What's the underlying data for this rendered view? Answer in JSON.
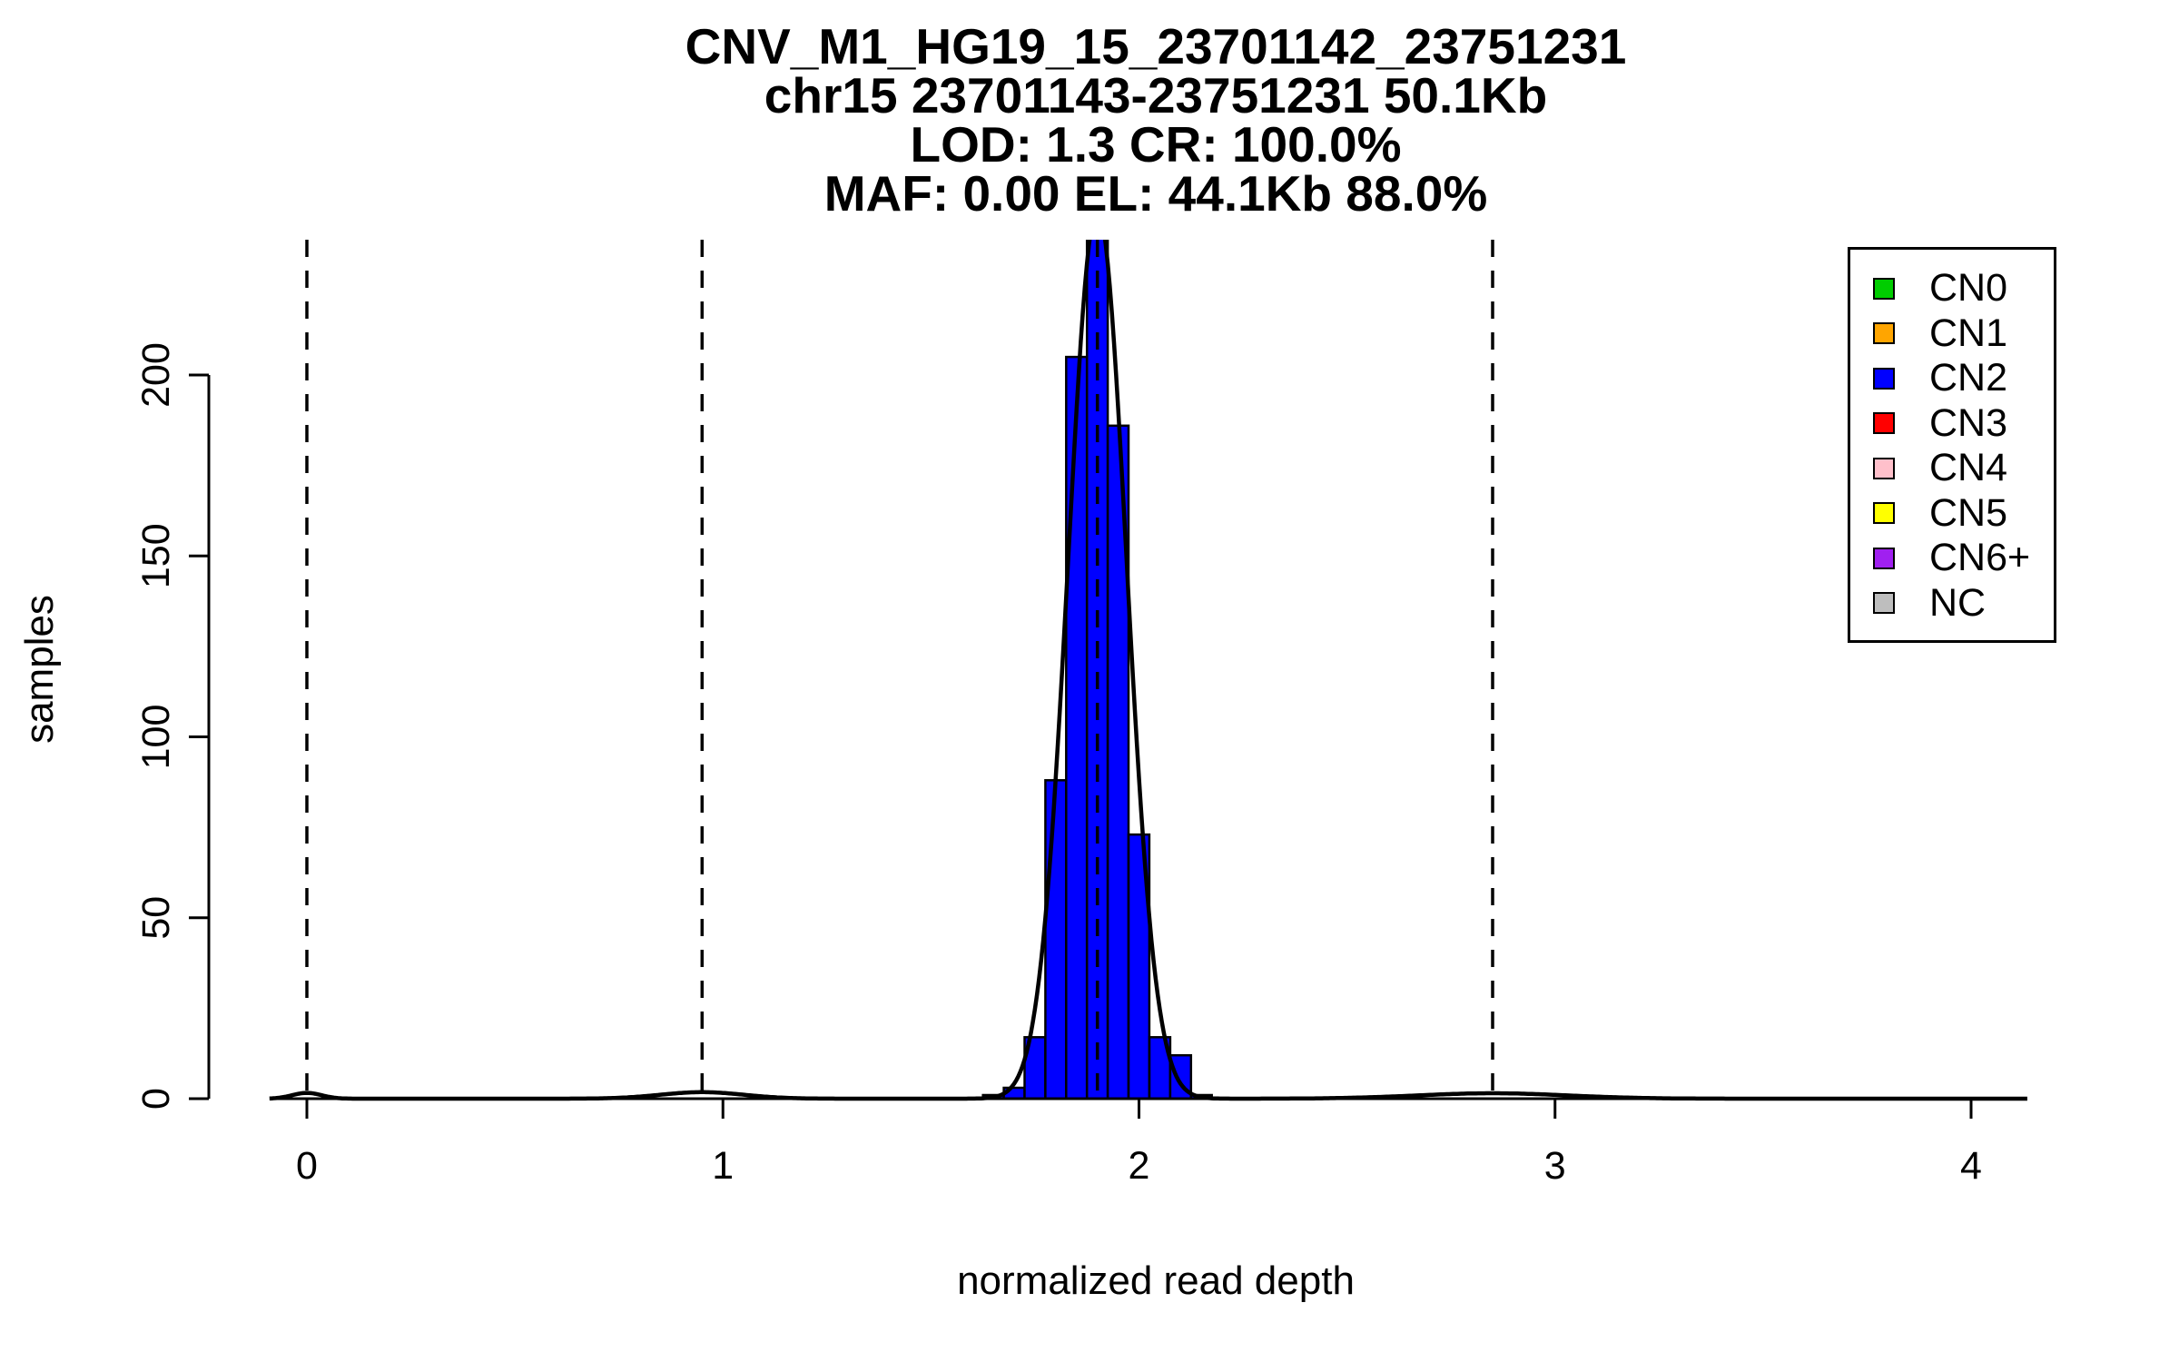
{
  "title": {
    "line1": "CNV_M1_HG19_15_23701142_23751231",
    "line2": "chr15 23701143-23751231 50.1Kb",
    "line3": "LOD: 1.3 CR: 100.0%",
    "line4": "MAF: 0.00 EL: 44.1Kb 88.0%"
  },
  "axes": {
    "x_label": "normalized read depth",
    "y_label": "samples",
    "x_ticks": [
      "0",
      "1",
      "2",
      "3",
      "4"
    ],
    "y_ticks": [
      "0",
      "50",
      "100",
      "150",
      "200"
    ]
  },
  "legend": {
    "entries": [
      {
        "label": "CN0",
        "color": "#00CD00"
      },
      {
        "label": "CN1",
        "color": "#FFA500"
      },
      {
        "label": "CN2",
        "color": "#0000FF"
      },
      {
        "label": "CN3",
        "color": "#FF0000"
      },
      {
        "label": "CN4",
        "color": "#FFC0CB"
      },
      {
        "label": "CN5",
        "color": "#FFFF00"
      },
      {
        "label": "CN6+",
        "color": "#A020F0"
      },
      {
        "label": "NC",
        "color": "#BEBEBE"
      }
    ]
  },
  "chart_data": {
    "type": "bar",
    "subtype": "histogram-with-density-curve",
    "title": "CNV_M1_HG19_15_23701142_23751231",
    "subtitle_lines": [
      "chr15 23701143-23751231 50.1Kb",
      "LOD: 1.3 CR: 100.0%",
      "MAF: 0.00 EL: 44.1Kb 88.0%"
    ],
    "xlabel": "normalized read depth",
    "ylabel": "samples",
    "xlim": [
      -0.2,
      4.2
    ],
    "ylim": [
      0,
      237
    ],
    "x_tick_values": [
      0,
      1,
      2,
      3,
      4
    ],
    "y_tick_values": [
      0,
      50,
      100,
      150,
      200
    ],
    "grid": false,
    "legend_position": "top-right",
    "histogram": {
      "series_label": "CN2",
      "fill": "#0000FF",
      "bin_width": 0.05,
      "bin_left_edges": [
        1.625,
        1.675,
        1.725,
        1.775,
        1.825,
        1.875,
        1.925,
        1.975,
        2.025,
        2.075,
        2.125
      ],
      "counts": [
        1,
        3,
        17,
        88,
        205,
        240,
        186,
        73,
        17,
        12,
        1
      ],
      "note_peak_clipped_at": 237
    },
    "dashed_lines_x": [
      0,
      0.95,
      1.9,
      2.85
    ],
    "density_curve": {
      "color": "#000000",
      "components": [
        {
          "mean": 1.9,
          "sd": 0.07,
          "peak": 246
        },
        {
          "mean": 0.0,
          "sd": 0.035,
          "peak": 1.6
        },
        {
          "mean": 0.95,
          "sd": 0.1,
          "peak": 1.8
        },
        {
          "mean": 2.85,
          "sd": 0.18,
          "peak": 1.5
        }
      ]
    }
  }
}
